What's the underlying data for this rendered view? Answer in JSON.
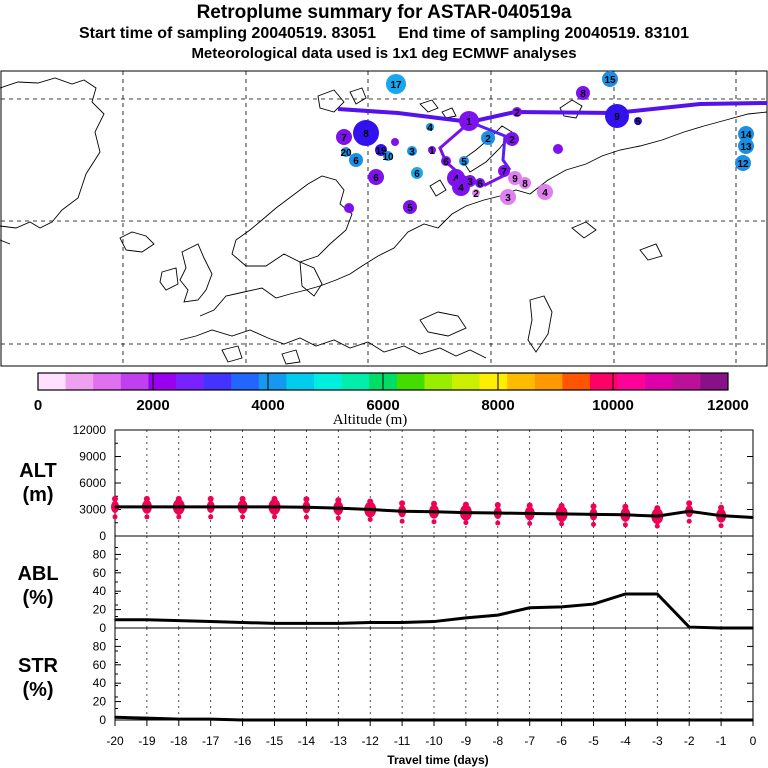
{
  "header": {
    "title": "Retroplume summary for ASTAR-040519a",
    "start_label": "Start time of sampling 20040519. 83051",
    "end_label": "End time of sampling 20040519. 83101",
    "met_label": "Meteorological data used is 1x1 deg ECMWF analyses"
  },
  "colorbar": {
    "ticks": [
      "0",
      "2000",
      "4000",
      "6000",
      "8000",
      "10000",
      "12000"
    ],
    "label": "Altitude (m)",
    "colors": [
      "#ffe0ff",
      "#f0a0f0",
      "#e070f0",
      "#c040f0",
      "#9900ee",
      "#7722ff",
      "#4433ff",
      "#2266ff",
      "#1599ee",
      "#00ccee",
      "#00eedd",
      "#00eeaa",
      "#00dd66",
      "#44dd00",
      "#99ee00",
      "#ccee00",
      "#ffee00",
      "#ffbb00",
      "#ff9900",
      "#ff5500",
      "#ff0066",
      "#ff0099",
      "#dd00aa",
      "#bb1199",
      "#881188"
    ]
  },
  "map": {
    "plume_markers": [
      "17",
      "15",
      "8",
      "2",
      "9",
      "5",
      "1",
      "7",
      "8",
      "4",
      "2",
      "2",
      "14",
      "13",
      "12",
      "6",
      "20",
      "19",
      "10",
      "3",
      "1",
      "6",
      "5",
      "6",
      "4",
      "4",
      "6",
      "3",
      "6",
      "7",
      "9",
      "8",
      "4",
      "3",
      "5",
      "6",
      "2"
    ],
    "marker_colors": {
      "light": "#e080f0",
      "mid": "#a03cf0",
      "deep": "#7d12ee",
      "blue": "#3311ee",
      "cyan": "#1b8fe6",
      "sky": "#17a7ee"
    }
  },
  "chart_data": [
    {
      "type": "line",
      "name": "ALT",
      "ylabel": "ALT\n(m)",
      "y_label_line1": "ALT",
      "y_label_line2": "(m)",
      "ylim": [
        0,
        12000
      ],
      "yticks": [
        "0",
        "3000",
        "6000",
        "9000",
        "12000"
      ],
      "x": [
        -20,
        -19,
        -18,
        -17,
        -16,
        -15,
        -14,
        -13,
        -12,
        -11,
        -10,
        -9,
        -8,
        -7,
        -6,
        -5,
        -4,
        -3,
        -2,
        -1,
        0
      ],
      "values": [
        3300,
        3300,
        3300,
        3300,
        3300,
        3300,
        3250,
        3150,
        3000,
        2800,
        2750,
        2650,
        2600,
        2550,
        2500,
        2450,
        2400,
        2250,
        2800,
        2300,
        2100
      ],
      "spread_color": "#ee0055"
    },
    {
      "type": "line",
      "name": "ABL",
      "y_label_line1": "ABL",
      "y_label_line2": "(%)",
      "ylim": [
        0,
        100
      ],
      "yticks": [
        "0",
        "20",
        "40",
        "60",
        "80"
      ],
      "x": [
        -20,
        -19,
        -18,
        -17,
        -16,
        -15,
        -14,
        -13,
        -12,
        -11,
        -10,
        -9,
        -8,
        -7,
        -6,
        -5,
        -4,
        -3,
        -2,
        -1,
        0
      ],
      "values": [
        9,
        9,
        8,
        7,
        6,
        5,
        5,
        5,
        6,
        6,
        7,
        11,
        14,
        22,
        23,
        26,
        37,
        37,
        1,
        0,
        0
      ]
    },
    {
      "type": "line",
      "name": "STR",
      "y_label_line1": "STR",
      "y_label_line2": "(%)",
      "ylim": [
        0,
        100
      ],
      "yticks": [
        "0",
        "20",
        "40",
        "60",
        "80"
      ],
      "x": [
        -20,
        -19,
        -18,
        -17,
        -16,
        -15,
        -14,
        -13,
        -12,
        -11,
        -10,
        -9,
        -8,
        -7,
        -6,
        -5,
        -4,
        -3,
        -2,
        -1,
        0
      ],
      "values": [
        3,
        2,
        1,
        1,
        0,
        0,
        0,
        0,
        0,
        0,
        0,
        0,
        0,
        0,
        0,
        0,
        0,
        0,
        0,
        0,
        0
      ],
      "xlabel": "Travel time (days)",
      "xticks": [
        "-20",
        "-19",
        "-18",
        "-17",
        "-16",
        "-15",
        "-14",
        "-13",
        "-12",
        "-11",
        "-10",
        "-9",
        "-8",
        "-7",
        "-6",
        "-5",
        "-4",
        "-3",
        "-2",
        "-1",
        "0"
      ]
    }
  ]
}
